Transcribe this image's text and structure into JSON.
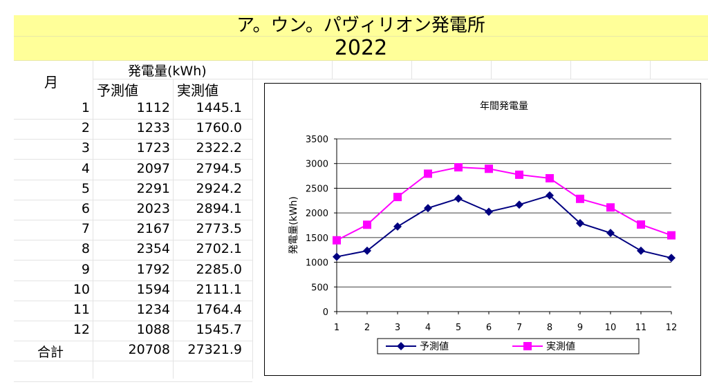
{
  "header": {
    "title": "ア。ウン。パヴィリオン発電所",
    "year": "2022"
  },
  "table": {
    "col_month": "月",
    "col_group": "発電量(kWh)",
    "col_forecast": "予測値",
    "col_actual": "実測値",
    "rows": [
      {
        "month": "1",
        "forecast": "1112",
        "actual": "1445.1"
      },
      {
        "month": "2",
        "forecast": "1233",
        "actual": "1760.0"
      },
      {
        "month": "3",
        "forecast": "1723",
        "actual": "2322.2"
      },
      {
        "month": "4",
        "forecast": "2097",
        "actual": "2794.5"
      },
      {
        "month": "5",
        "forecast": "2291",
        "actual": "2924.2"
      },
      {
        "month": "6",
        "forecast": "2023",
        "actual": "2894.1"
      },
      {
        "month": "7",
        "forecast": "2167",
        "actual": "2773.5"
      },
      {
        "month": "8",
        "forecast": "2354",
        "actual": "2702.1"
      },
      {
        "month": "9",
        "forecast": "1792",
        "actual": "2285.0"
      },
      {
        "month": "10",
        "forecast": "1594",
        "actual": "2111.1"
      },
      {
        "month": "11",
        "forecast": "1234",
        "actual": "1764.4"
      },
      {
        "month": "12",
        "forecast": "1088",
        "actual": "1545.7"
      }
    ],
    "total": {
      "label": "合計",
      "forecast": "20708",
      "actual": "27321.9"
    }
  },
  "chart_data": {
    "type": "line",
    "title": "年間発電量",
    "xlabel": "",
    "ylabel": "発電量(kWh)",
    "x": [
      1,
      2,
      3,
      4,
      5,
      6,
      7,
      8,
      9,
      10,
      11,
      12
    ],
    "ylim": [
      0,
      3500
    ],
    "yticks": [
      0,
      500,
      1000,
      1500,
      2000,
      2500,
      3000,
      3500
    ],
    "grid": true,
    "legend": "bottom",
    "series": [
      {
        "name": "予測値",
        "color": "#000080",
        "marker": "diamond",
        "values": [
          1112,
          1233,
          1723,
          2097,
          2291,
          2023,
          2167,
          2354,
          1792,
          1594,
          1234,
          1088
        ]
      },
      {
        "name": "実測値",
        "color": "#ff00ff",
        "marker": "square",
        "values": [
          1445.1,
          1760.0,
          2322.2,
          2794.5,
          2924.2,
          2894.1,
          2773.5,
          2702.1,
          2285.0,
          2111.1,
          1764.4,
          1545.7
        ]
      }
    ]
  }
}
